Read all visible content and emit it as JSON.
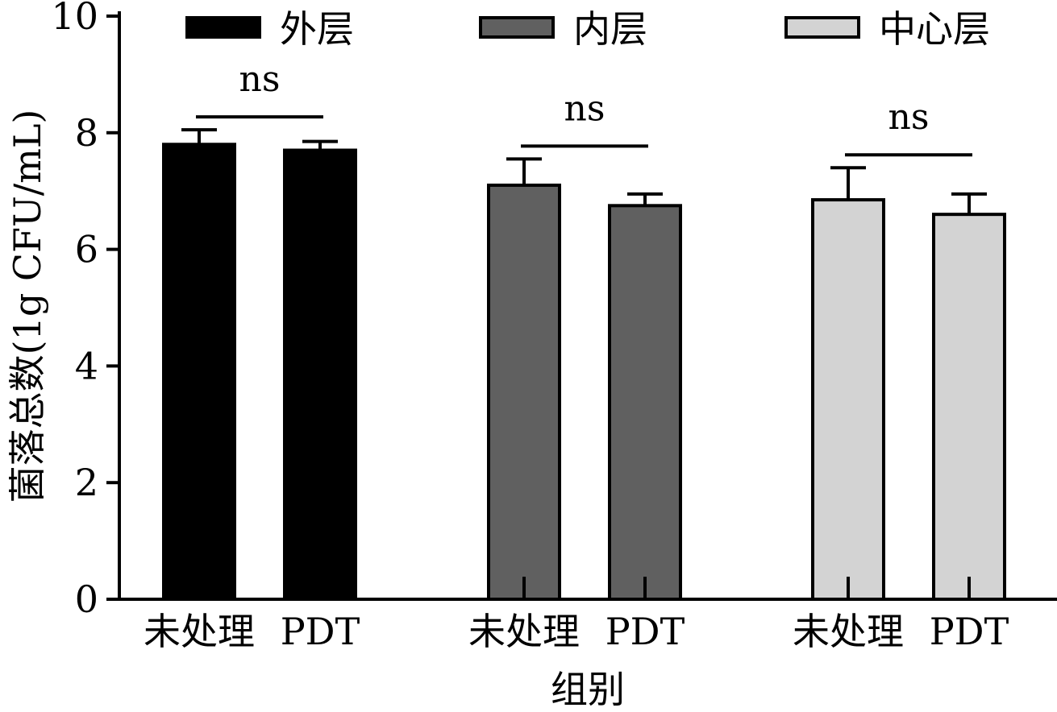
{
  "chart_data": {
    "type": "bar",
    "title": "",
    "xlabel": "组别",
    "ylabel": "菌落总数(1g CFU/mL)",
    "ylim": [
      0,
      10
    ],
    "yticks": [
      "0",
      "2",
      "4",
      "6",
      "8",
      "10"
    ],
    "ytick_values": [
      0,
      2,
      4,
      6,
      8,
      10
    ],
    "legend_position": "top",
    "legend": [
      {
        "name": "外层",
        "color": "#000000"
      },
      {
        "name": "内层",
        "color": "#606060"
      },
      {
        "name": "中心层",
        "color": "#d3d3d3"
      }
    ],
    "groups": [
      {
        "series": "外层",
        "color": "#000000",
        "categories": [
          "未处理",
          "PDT"
        ],
        "values": [
          7.8,
          7.7
        ],
        "error": [
          0.25,
          0.15
        ],
        "significance": "ns"
      },
      {
        "series": "内层",
        "color": "#606060",
        "categories": [
          "未处理",
          "PDT"
        ],
        "values": [
          7.1,
          6.75
        ],
        "error": [
          0.45,
          0.2
        ],
        "significance": "ns"
      },
      {
        "series": "中心层",
        "color": "#d3d3d3",
        "categories": [
          "未处理",
          "PDT"
        ],
        "values": [
          6.85,
          6.6
        ],
        "error": [
          0.55,
          0.35
        ],
        "significance": "ns"
      }
    ]
  }
}
